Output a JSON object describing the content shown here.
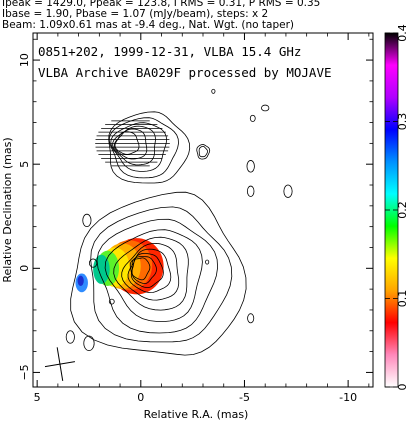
{
  "header": {
    "line1": "Ipeak = 1429.0, Ppeak = 123.8, I RMS = 0.31, P RMS = 0.35",
    "line2": "Ibase = 1.90, Pbase = 1.07 (mJy/beam), steps: x 2",
    "line3": "Beam: 1.09x0.61 mas at -9.4 deg., Nat. Wgt. (no taper)"
  },
  "chart_data": {
    "type": "contour",
    "title": "",
    "annotations": [
      "0851+202, 1999-12-31, VLBA 15.4 GHz",
      "VLBA Archive BA029F processed by MOJAVE"
    ],
    "xlabel": "Relative R.A. (mas)",
    "ylabel": "Relative Declination (mas)",
    "xlim": [
      5.2,
      -11.2
    ],
    "ylim": [
      -5.7,
      11.3
    ],
    "xticks": [
      5,
      0,
      -5,
      -10
    ],
    "xtick_labels": [
      "5",
      "0",
      "-5",
      "-10"
    ],
    "yticks": [
      -5,
      0,
      5,
      10
    ],
    "ytick_labels": [
      "−5",
      "0",
      "5",
      "10"
    ],
    "colorbar": {
      "min": 0,
      "max": 0.4,
      "ticks": [
        0,
        0.1,
        0.2,
        0.3,
        0.4
      ],
      "tick_labels": [
        "0",
        "0.1",
        "0.2",
        "0.3",
        "0.4"
      ]
    },
    "stokes_i_source": {
      "peak_position": [
        0.0,
        0.0
      ],
      "contour_scale": [
        0.8,
        1.0,
        1.25,
        1.6,
        2.1,
        2.7,
        3.4,
        4.2,
        5.0,
        6.0
      ],
      "core_rx": 0.55,
      "core_ry": 0.9
    },
    "polarization_color": [
      {
        "x": 0.2,
        "y": 0.1,
        "rx": 1.3,
        "ry": 1.35,
        "color": "#ff2600"
      },
      {
        "x": 0.55,
        "y": 0.15,
        "rx": 1.1,
        "ry": 1.2,
        "color": "#ff6a00"
      },
      {
        "x": 0.9,
        "y": 0.1,
        "rx": 0.9,
        "ry": 1.1,
        "color": "#ffb000"
      },
      {
        "x": 1.25,
        "y": 0.05,
        "rx": 0.7,
        "ry": 0.95,
        "color": "#ffe600"
      },
      {
        "x": 1.6,
        "y": 0.0,
        "rx": 0.55,
        "ry": 0.85,
        "color": "#5cf22a"
      },
      {
        "x": 1.9,
        "y": -0.05,
        "rx": 0.4,
        "ry": 0.7,
        "color": "#00c88c"
      },
      {
        "x": 2.85,
        "y": -0.7,
        "rx": 0.3,
        "ry": 0.45,
        "color": "#2f8cff"
      },
      {
        "x": 2.9,
        "y": -0.6,
        "rx": 0.15,
        "ry": 0.25,
        "color": "#1b2fd0"
      }
    ],
    "beam": {
      "x": 3.9,
      "y": -4.6,
      "major": 1.09,
      "minor": 0.61,
      "pa_deg": -9.4
    },
    "gradient_colors": [
      "#ffffff",
      "#ff88bb",
      "#ff0000",
      "#ffa500",
      "#ffff00",
      "#00ff00",
      "#00ffff",
      "#0090ff",
      "#0000ff",
      "#b000ff",
      "#ff00ff",
      "#000000"
    ]
  }
}
